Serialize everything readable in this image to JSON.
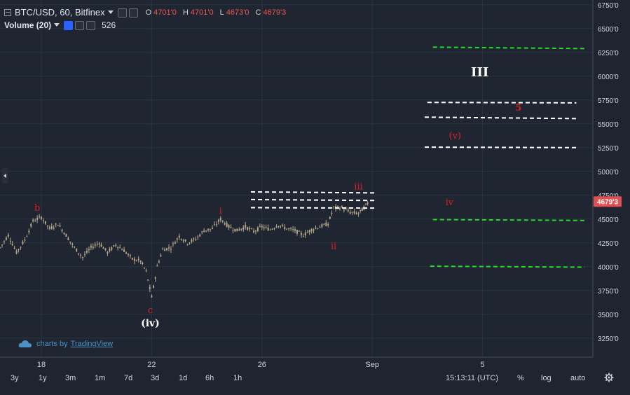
{
  "legend": {
    "symbol": "BTC/USD, 60, Bitfinex",
    "ohlc": [
      {
        "k": "O",
        "v": "4701'0"
      },
      {
        "k": "H",
        "v": "4701'0"
      },
      {
        "k": "L",
        "v": "4673'0"
      },
      {
        "k": "C",
        "v": "4679'3"
      }
    ],
    "volume_label": "Volume (20)",
    "volume_value": "526"
  },
  "watermark": {
    "prefix": "charts by",
    "link": "TradingView"
  },
  "toolbar": {
    "timeframes": [
      "3y",
      "1y",
      "3m",
      "1m",
      "7d",
      "3d",
      "1d",
      "6h",
      "1h"
    ],
    "clock": "15:13:11 (UTC)",
    "percent": "%",
    "log": "log",
    "auto": "auto"
  },
  "colors": {
    "background": "#1f2632",
    "grid": "#2c3340",
    "axis_text": "#d1d4dc",
    "wave_red": "#e01f1f",
    "wave_white": "#ffffff",
    "level_white": "#ffffff",
    "level_green": "#22dd22",
    "price_tag": "#e05050",
    "candle": "#b8a888"
  },
  "chart_data": {
    "type": "candlestick",
    "title": "BTC/USD, 60, Bitfinex",
    "y_axis": {
      "ylim": [
        3050,
        6800
      ],
      "ticks": [
        "6750'0",
        "6500'0",
        "6250'0",
        "6000'0",
        "5750'0",
        "5500'0",
        "5250'0",
        "5000'0",
        "4750'0",
        "4500'0",
        "4250'0",
        "4000'0",
        "3750'0",
        "3500'0",
        "3250'0"
      ],
      "tick_values": [
        6750,
        6500,
        6250,
        6000,
        5750,
        5500,
        5250,
        5000,
        4750,
        4500,
        4250,
        4000,
        3750,
        3500,
        3250
      ]
    },
    "x_axis": {
      "labels": [
        "18",
        "22",
        "26",
        "Sep",
        "5"
      ],
      "label_index": [
        1.5,
        5.5,
        9.5,
        13.5,
        17.5
      ],
      "xlim": [
        0,
        21.5
      ],
      "unit": "days since Aug 16"
    },
    "last_price": {
      "label": "4679'3",
      "value": 4679.3
    },
    "price_path": [
      [
        0.0,
        4200
      ],
      [
        0.3,
        4330
      ],
      [
        0.6,
        4150
      ],
      [
        0.9,
        4280
      ],
      [
        1.2,
        4480
      ],
      [
        1.5,
        4520
      ],
      [
        1.8,
        4400
      ],
      [
        2.1,
        4450
      ],
      [
        2.4,
        4330
      ],
      [
        2.7,
        4200
      ],
      [
        3.0,
        4100
      ],
      [
        3.3,
        4200
      ],
      [
        3.6,
        4250
      ],
      [
        3.9,
        4150
      ],
      [
        4.2,
        4230
      ],
      [
        4.5,
        4170
      ],
      [
        4.8,
        4080
      ],
      [
        5.1,
        4060
      ],
      [
        5.3,
        3950
      ],
      [
        5.5,
        3680
      ],
      [
        5.7,
        4000
      ],
      [
        5.9,
        4180
      ],
      [
        6.2,
        4200
      ],
      [
        6.5,
        4320
      ],
      [
        6.8,
        4250
      ],
      [
        7.1,
        4290
      ],
      [
        7.4,
        4380
      ],
      [
        7.7,
        4400
      ],
      [
        8.0,
        4500
      ],
      [
        8.3,
        4420
      ],
      [
        8.6,
        4380
      ],
      [
        8.9,
        4420
      ],
      [
        9.2,
        4370
      ],
      [
        9.5,
        4420
      ],
      [
        9.8,
        4390
      ],
      [
        10.1,
        4440
      ],
      [
        10.4,
        4400
      ],
      [
        10.7,
        4380
      ],
      [
        11.0,
        4330
      ],
      [
        11.3,
        4390
      ],
      [
        11.6,
        4420
      ],
      [
        11.9,
        4450
      ],
      [
        12.1,
        4620
      ],
      [
        12.4,
        4620
      ],
      [
        12.7,
        4570
      ],
      [
        13.0,
        4560
      ],
      [
        13.2,
        4620
      ],
      [
        13.4,
        4690
      ]
    ],
    "wave_labels": [
      {
        "text": "b",
        "x": 1.35,
        "y": 4585,
        "color": "red"
      },
      {
        "text": "c",
        "x": 5.45,
        "y": 3515,
        "color": "red"
      },
      {
        "text": "(iv)",
        "x": 5.45,
        "y": 3375,
        "color": "white"
      },
      {
        "text": "i",
        "x": 8.0,
        "y": 4555,
        "color": "red"
      },
      {
        "text": "ii",
        "x": 12.1,
        "y": 4185,
        "color": "red"
      },
      {
        "text": "iii",
        "x": 13.0,
        "y": 4810,
        "color": "red"
      },
      {
        "text": "iv",
        "x": 16.3,
        "y": 4645,
        "color": "red"
      },
      {
        "text": "(v)",
        "x": 16.5,
        "y": 5345,
        "color": "red"
      },
      {
        "text": "5",
        "x": 18.8,
        "y": 5640,
        "color": "red"
      },
      {
        "text": "III",
        "x": 17.4,
        "y": 6000,
        "color": "white"
      }
    ],
    "levels": [
      {
        "y": 6305,
        "x1": 15.7,
        "x2": 21.2,
        "color": "green",
        "end_y": 6290
      },
      {
        "y": 5725,
        "x1": 15.5,
        "x2": 20.9,
        "color": "white",
        "end_y": 5720
      },
      {
        "y": 5570,
        "x1": 15.4,
        "x2": 20.9,
        "color": "white",
        "end_y": 5555
      },
      {
        "y": 5255,
        "x1": 15.4,
        "x2": 20.9,
        "color": "white",
        "end_y": 5250
      },
      {
        "y": 4785,
        "x1": 9.1,
        "x2": 13.6,
        "color": "white",
        "end_y": 4775
      },
      {
        "y": 4705,
        "x1": 9.1,
        "x2": 13.6,
        "color": "white",
        "end_y": 4695
      },
      {
        "y": 4620,
        "x1": 9.1,
        "x2": 13.6,
        "color": "white",
        "end_y": 4615
      },
      {
        "y": 4495,
        "x1": 15.7,
        "x2": 21.2,
        "color": "green",
        "end_y": 4485
      },
      {
        "y": 4005,
        "x1": 15.6,
        "x2": 21.2,
        "color": "green",
        "end_y": 3995
      }
    ]
  }
}
